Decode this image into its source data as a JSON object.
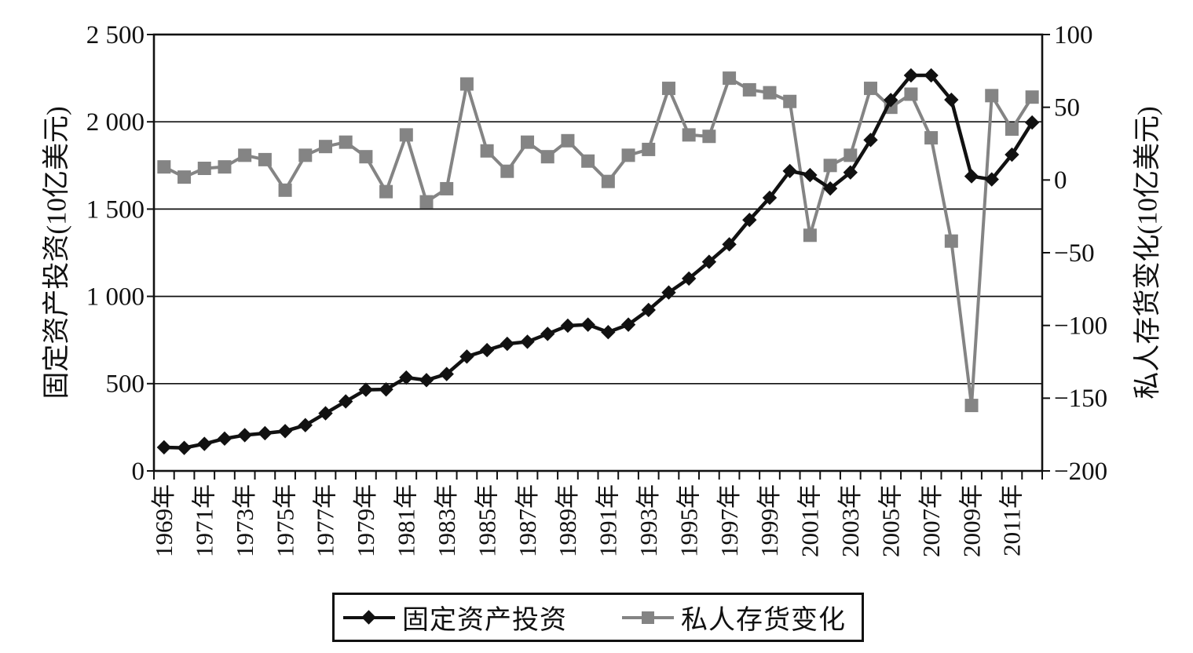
{
  "chart": {
    "left_tick_labels": [
      "0",
      "500",
      "1 000",
      "1 500",
      "2 000",
      "2 500"
    ],
    "left_tick_values": [
      0,
      500,
      1000,
      1500,
      2000,
      2500
    ],
    "right_tick_labels": [
      "100",
      "50",
      "0",
      "−50",
      "−100",
      "−150",
      "−200"
    ],
    "right_tick_values": [
      100,
      50,
      0,
      -50,
      -100,
      -150,
      -200
    ],
    "x_axis_labels": [
      "1969年",
      "1971年",
      "1973年",
      "1975年",
      "1977年",
      "1979年",
      "1981年",
      "1983年",
      "1985年",
      "1987年",
      "1989年",
      "1991年",
      "1993年",
      "1995年",
      "1997年",
      "1999年",
      "2001年",
      "2003年",
      "2005年",
      "2007年",
      "2009年",
      "2011年"
    ],
    "colors": {
      "series1": "#111111",
      "series2": "#848484",
      "grid": "#111111",
      "background": "#ffffff"
    },
    "legend": {
      "item1": "固定资产投资",
      "item2": "私人存货变化"
    }
  },
  "chart_data": {
    "type": "line",
    "title": "",
    "x": [
      1969,
      1970,
      1971,
      1972,
      1973,
      1974,
      1975,
      1976,
      1977,
      1978,
      1979,
      1980,
      1981,
      1982,
      1983,
      1984,
      1985,
      1986,
      1987,
      1988,
      1989,
      1990,
      1991,
      1992,
      1993,
      1994,
      1995,
      1996,
      1997,
      1998,
      1999,
      2000,
      2001,
      2002,
      2003,
      2004,
      2005,
      2006,
      2007,
      2008,
      2009,
      2010,
      2011,
      2012
    ],
    "x_unit_suffix": "年",
    "series": [
      {
        "name": "固定资产投资",
        "axis": "left",
        "marker": "diamond",
        "color": "#111111",
        "values": [
          135,
          132,
          155,
          185,
          205,
          216,
          228,
          262,
          330,
          398,
          465,
          467,
          535,
          520,
          555,
          655,
          692,
          728,
          740,
          785,
          832,
          838,
          795,
          838,
          922,
          1022,
          1102,
          1198,
          1298,
          1438,
          1565,
          1718,
          1695,
          1618,
          1710,
          1896,
          2125,
          2266,
          2266,
          2126,
          1688,
          1670,
          1812,
          1996
        ]
      },
      {
        "name": "私人存货变化",
        "axis": "right",
        "marker": "square",
        "color": "#848484",
        "values": [
          9,
          2,
          8,
          9,
          17,
          14,
          -7,
          17,
          23,
          26,
          16,
          -8,
          31,
          -15,
          -6,
          66,
          20,
          6,
          26,
          16,
          27,
          13,
          -1,
          17,
          21,
          63,
          31,
          30,
          70,
          62,
          60,
          54,
          -38,
          10,
          17,
          63,
          50,
          59,
          29,
          -42,
          -155,
          58,
          35,
          57
        ]
      }
    ],
    "left_axis": {
      "label": "固定资产投资(10亿美元)",
      "min": 0,
      "max": 2500,
      "tick_step": 500
    },
    "right_axis": {
      "label": "私人存货变化(10亿美元)",
      "min": -200,
      "max": 100,
      "tick_step": 50
    },
    "grid": "horizontal-only",
    "legend_position": "bottom"
  }
}
